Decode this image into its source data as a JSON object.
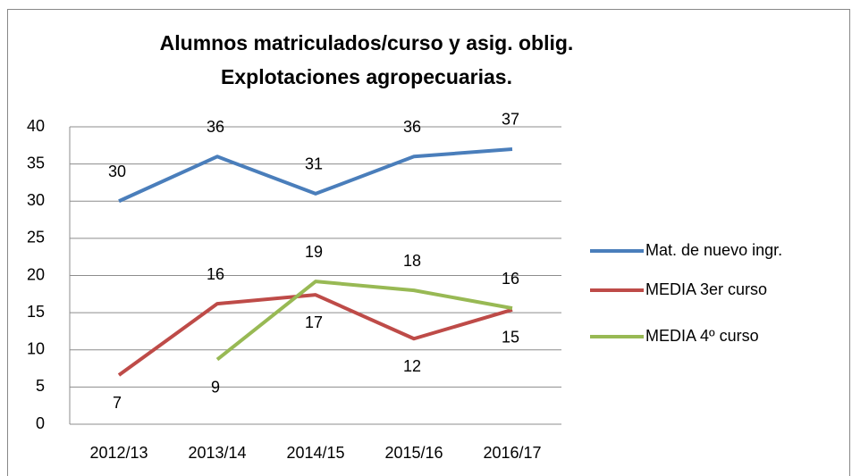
{
  "chart_data": {
    "type": "line",
    "title": [
      "Alumnos matriculados/curso y asig. oblig.",
      "Explotaciones agropecuarias."
    ],
    "categories": [
      "2012/13",
      "2013/14",
      "2014/15",
      "2015/16",
      "2016/17"
    ],
    "series": [
      {
        "name": "Mat. de nuevo ingr.",
        "color": "#4a7ebb",
        "values": [
          30,
          36,
          31,
          36,
          37
        ],
        "value_labels": [
          "30",
          "36",
          "31",
          "36",
          "37"
        ]
      },
      {
        "name": "MEDIA 3er curso",
        "color": "#be4b48",
        "values": [
          6.6,
          16.2,
          17.4,
          11.5,
          15.4
        ],
        "value_labels": [
          "7",
          "16",
          "17",
          "12",
          "15"
        ]
      },
      {
        "name": "MEDIA 4º curso",
        "color": "#98b954",
        "values": [
          null,
          8.7,
          19.2,
          18,
          15.6
        ],
        "value_labels": [
          null,
          "9",
          "19",
          "18",
          "16"
        ]
      }
    ],
    "ylim": [
      0,
      40
    ],
    "yticks": [
      0,
      5,
      10,
      15,
      20,
      25,
      30,
      35,
      40
    ],
    "grid": true,
    "legend": "right"
  }
}
